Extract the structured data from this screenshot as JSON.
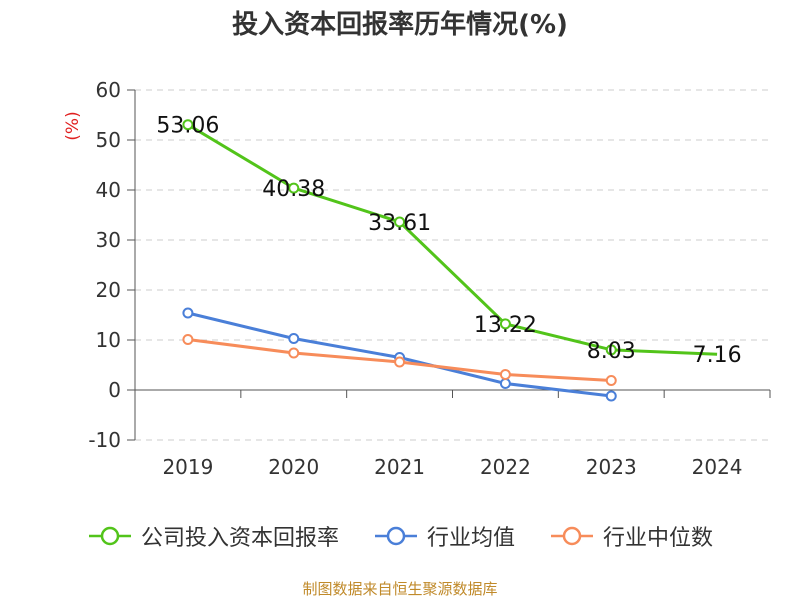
{
  "title": "投入资本回报率历年情况(%)",
  "footer": "制图数据来自恒生聚源数据库",
  "colors": {
    "company": "#52c41a",
    "industry_avg": "#4a7fd8",
    "industry_median": "#f78c5a",
    "ylabel": "#e02020",
    "footer": "#c08a2a",
    "grid": "#cccccc",
    "text": "#333333"
  },
  "chart_data": {
    "type": "line",
    "title": "投入资本回报率历年情况(%)",
    "xlabel": "",
    "ylabel": "(%)",
    "categories": [
      "2019",
      "2020",
      "2021",
      "2022",
      "2023",
      "2024"
    ],
    "ylim": [
      -10,
      60
    ],
    "yticks": [
      -10,
      0,
      10,
      20,
      30,
      40,
      50,
      60
    ],
    "grid": "horizontal dashed",
    "legend": "bottom",
    "series": [
      {
        "name": "公司投入资本回报率",
        "color": "#52c41a",
        "values": [
          53.06,
          40.38,
          33.61,
          13.22,
          8.03,
          7.16
        ],
        "data_labels": [
          "53.06",
          "40.38",
          "33.61",
          "13.22",
          "8.03",
          "7.16"
        ]
      },
      {
        "name": "行业均值",
        "color": "#4a7fd8",
        "values": [
          15.4,
          10.3,
          6.5,
          1.3,
          -1.2,
          null
        ]
      },
      {
        "name": "行业中位数",
        "color": "#f78c5a",
        "values": [
          10.1,
          7.4,
          5.6,
          3.1,
          1.9,
          null
        ]
      }
    ]
  }
}
